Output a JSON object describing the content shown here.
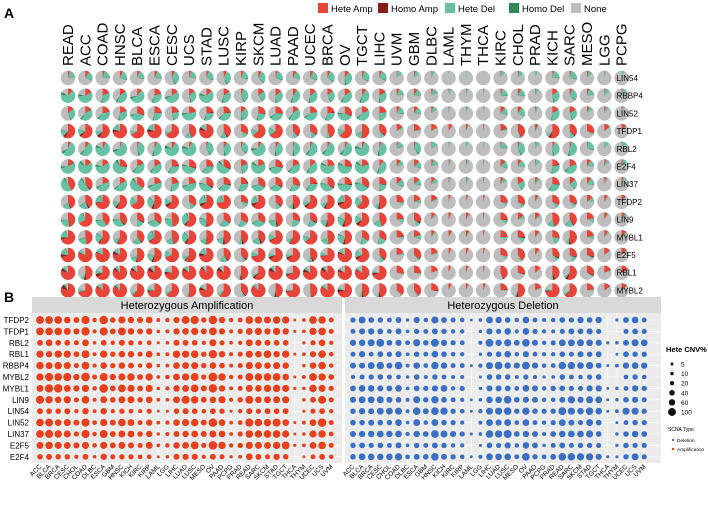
{
  "colors": {
    "hete_amp": "#e8443a",
    "homo_amp": "#8b1a1a",
    "hete_del": "#66c2a4",
    "homo_del": "#2e8b57",
    "none": "#bdbdbd",
    "panel_bg": "#ebebeb",
    "strip_bg": "#d9d9d9",
    "grid": "#ffffff",
    "amp_dot": "#e8401c",
    "del_dot": "#3a6fc4"
  },
  "chart_data": [
    {
      "type": "pie_grid",
      "panel_label": "A",
      "legend": [
        "Hete Amp",
        "Homo Amp",
        "Hete Del",
        "Homo Del",
        "None"
      ],
      "cancers": [
        "READ",
        "ACC",
        "COAD",
        "HNSC",
        "BLCA",
        "ESCA",
        "CESC",
        "UCS",
        "STAD",
        "LUSC",
        "KIRP",
        "SKCM",
        "LUAD",
        "PAAD",
        "UCEC",
        "BRCA",
        "OV",
        "TGCT",
        "LIHC",
        "UVM",
        "GBM",
        "DLBC",
        "LAML",
        "THYM",
        "THCA",
        "KIRC",
        "CHOL",
        "PRAD",
        "KICH",
        "SARC",
        "MESO",
        "LGG",
        "PCPG"
      ],
      "genes": [
        "LIN54",
        "RBBP4",
        "LIN52",
        "TFDP1",
        "RBL2",
        "E2F4",
        "LIN37",
        "TFDP2",
        "LIN9",
        "MYBL1",
        "E2F5",
        "RBL1",
        "MYBL2"
      ],
      "gene_profiles": {
        "LIN54": [
          0.05,
          0.2,
          0.4
        ],
        "RBBP4": [
          0.1,
          0.35,
          0.15
        ],
        "LIN52": [
          0.15,
          0.3,
          0.25
        ],
        "TFDP1": [
          0.45,
          0.1,
          0.3
        ],
        "RBL2": [
          0.05,
          0.45,
          0.25
        ],
        "E2F4": [
          0.15,
          0.4,
          0.2
        ],
        "LIN37": [
          0.2,
          0.3,
          0.25
        ],
        "TFDP2": [
          0.4,
          0.15,
          0.3
        ],
        "LIN9": [
          0.35,
          0.2,
          0.3
        ],
        "MYBL1": [
          0.4,
          0.15,
          0.25
        ],
        "E2F5": [
          0.45,
          0.1,
          0.25
        ],
        "RBL1": [
          0.55,
          0.05,
          0.2
        ],
        "MYBL2": [
          0.6,
          0.05,
          0.15
        ]
      },
      "cancer_intensity": [
        0.95,
        0.9,
        0.95,
        0.85,
        0.85,
        0.9,
        0.8,
        0.85,
        0.85,
        0.85,
        0.55,
        0.75,
        0.8,
        0.7,
        0.7,
        0.8,
        0.9,
        0.75,
        0.65,
        0.3,
        0.4,
        0.2,
        0.1,
        0.1,
        0.05,
        0.35,
        0.4,
        0.15,
        0.6,
        0.55,
        0.35,
        0.15,
        0.15
      ]
    },
    {
      "type": "dot_matrix",
      "panel_label": "B",
      "facets": [
        "Heterozygous Amplification",
        "Heterozygous Deletion"
      ],
      "genes": [
        "TFDP2",
        "TFDP1",
        "RBL2",
        "RBL1",
        "RBBP4",
        "MYBL2",
        "MYBL1",
        "LIN9",
        "LIN54",
        "LIN52",
        "LIN37",
        "E2F5",
        "E2F4"
      ],
      "cancers": [
        "ACC",
        "BLCA",
        "BRCA",
        "CESC",
        "CHOL",
        "COAD",
        "DLBC",
        "ESCA",
        "GBM",
        "HNSC",
        "KICH",
        "KIRC",
        "KIRP",
        "LAML",
        "LGG",
        "LIHC",
        "LUAD",
        "LUSC",
        "MESO",
        "OV",
        "PAAD",
        "PCPG",
        "PRAD",
        "READ",
        "SARC",
        "SKCM",
        "STAD",
        "TGCT",
        "THCA",
        "THYM",
        "UCEC",
        "UCS",
        "UVM"
      ],
      "size_legend_title": "Hete CNV%",
      "size_legend_values": [
        5,
        10,
        20,
        40,
        60,
        100
      ],
      "type_legend_title": "SCNA Type",
      "type_legend_entries": [
        "Deletion",
        "Amplification"
      ],
      "amp_gene_factor": [
        0.85,
        0.8,
        0.5,
        0.75,
        0.6,
        0.9,
        0.85,
        0.75,
        0.4,
        0.8,
        0.75,
        0.85,
        0.45
      ],
      "del_gene_factor": [
        0.55,
        0.45,
        0.85,
        0.45,
        0.75,
        0.35,
        0.55,
        0.65,
        0.8,
        0.55,
        0.7,
        0.45,
        0.7
      ],
      "amp_cancer_factor": [
        0.9,
        0.85,
        0.85,
        0.8,
        0.4,
        0.95,
        0.2,
        0.9,
        0.4,
        0.75,
        0.6,
        0.35,
        0.55,
        0.1,
        0.15,
        0.7,
        0.85,
        0.8,
        0.4,
        0.9,
        0.65,
        0.15,
        0.3,
        0.95,
        0.7,
        0.75,
        0.85,
        0.7,
        0.05,
        0.1,
        0.65,
        0.9,
        0.3
      ],
      "del_cancer_factor": [
        0.5,
        0.8,
        0.75,
        0.7,
        0.55,
        0.75,
        0.2,
        0.75,
        0.4,
        0.85,
        0.8,
        0.45,
        0.35,
        0.05,
        0.15,
        0.75,
        0.8,
        0.9,
        0.45,
        0.9,
        0.6,
        0.25,
        0.4,
        0.8,
        0.75,
        0.7,
        0.8,
        0.7,
        0.05,
        0.1,
        0.6,
        0.7,
        0.5
      ]
    }
  ]
}
